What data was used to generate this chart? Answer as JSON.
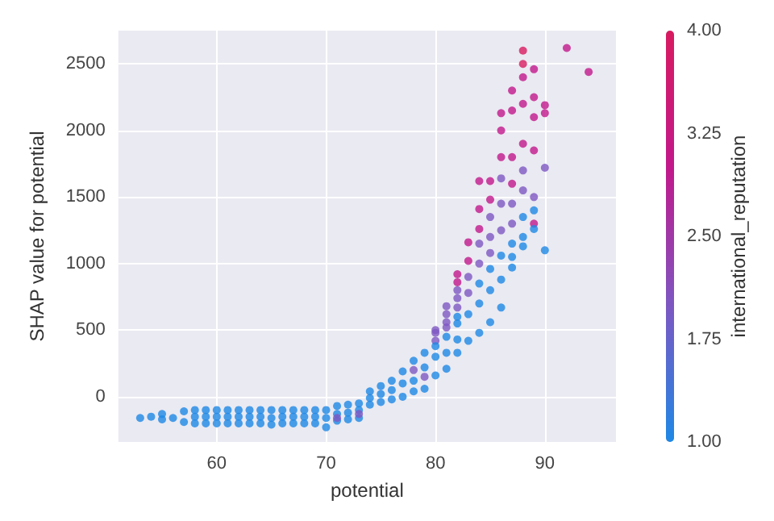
{
  "chart_data": {
    "type": "scatter",
    "xlabel": "potential",
    "ylabel": "SHAP value for potential",
    "clabel": "international_reputation",
    "xlim": [
      51,
      96.5
    ],
    "xticks": [
      60,
      70,
      80,
      90
    ],
    "ylim": [
      -340,
      2750
    ],
    "yticks": [
      0,
      500,
      1000,
      1500,
      2000,
      2500
    ],
    "grid": true,
    "marker": "circle",
    "clim": [
      1,
      4
    ],
    "cticks": [
      {
        "value": 1,
        "label": "1.00"
      },
      {
        "value": 1.75,
        "label": "1.75"
      },
      {
        "value": 2.5,
        "label": "2.50"
      },
      {
        "value": 3.25,
        "label": "3.25"
      },
      {
        "value": 4,
        "label": "4.00"
      }
    ],
    "x": [
      53,
      54,
      55,
      55,
      56,
      57,
      57,
      58,
      58,
      58,
      59,
      59,
      59,
      60,
      60,
      60,
      61,
      61,
      61,
      62,
      62,
      62,
      63,
      63,
      63,
      64,
      64,
      64,
      65,
      65,
      65,
      66,
      66,
      66,
      67,
      67,
      67,
      68,
      68,
      68,
      69,
      69,
      69,
      70,
      70,
      70,
      71,
      71,
      71,
      71,
      72,
      72,
      72,
      73,
      73,
      73,
      73,
      74,
      74,
      74,
      75,
      75,
      75,
      76,
      76,
      76,
      77,
      77,
      77,
      78,
      78,
      78,
      78,
      79,
      79,
      79,
      79,
      80,
      80,
      80,
      80,
      80,
      80,
      81,
      81,
      81,
      81,
      81,
      81,
      81,
      82,
      82,
      82,
      82,
      82,
      82,
      82,
      82,
      82,
      83,
      83,
      83,
      83,
      83,
      83,
      84,
      84,
      84,
      84,
      84,
      84,
      84,
      84,
      85,
      85,
      85,
      85,
      85,
      85,
      85,
      85,
      86,
      86,
      86,
      86,
      86,
      86,
      86,
      86,
      86,
      87,
      87,
      87,
      87,
      87,
      87,
      87,
      87,
      87,
      88,
      88,
      88,
      88,
      88,
      88,
      88,
      88,
      88,
      88,
      89,
      89,
      89,
      89,
      89,
      89,
      89,
      89,
      90,
      90,
      90,
      90,
      92,
      94
    ],
    "values": [
      -160,
      -150,
      -130,
      -170,
      -160,
      -110,
      -190,
      -100,
      -150,
      -200,
      -100,
      -150,
      -200,
      -100,
      -150,
      -200,
      -100,
      -150,
      -200,
      -100,
      -150,
      -200,
      -100,
      -150,
      -200,
      -100,
      -150,
      -200,
      -100,
      -160,
      -210,
      -100,
      -150,
      -200,
      -100,
      -150,
      -200,
      -100,
      -150,
      -200,
      -100,
      -150,
      -200,
      -100,
      -160,
      -230,
      -70,
      -130,
      -180,
      -160,
      -60,
      -120,
      -170,
      -50,
      -100,
      -160,
      -130,
      40,
      -10,
      -60,
      80,
      20,
      -40,
      120,
      50,
      -20,
      190,
      100,
      0,
      270,
      200,
      120,
      40,
      330,
      220,
      150,
      60,
      500,
      420,
      300,
      160,
      480,
      380,
      680,
      560,
      450,
      330,
      210,
      620,
      520,
      920,
      800,
      670,
      550,
      430,
      330,
      860,
      740,
      600,
      1160,
      1020,
      900,
      780,
      620,
      420,
      1620,
      1410,
      1260,
      1150,
      1000,
      850,
      700,
      480,
      1620,
      1480,
      1350,
      1200,
      1080,
      960,
      800,
      560,
      2130,
      2000,
      1800,
      1640,
      1450,
      1250,
      1060,
      880,
      670,
      2300,
      2150,
      1800,
      1600,
      1450,
      1300,
      1150,
      1050,
      970,
      2600,
      2500,
      2400,
      2200,
      1900,
      1700,
      1550,
      1350,
      1200,
      1130,
      2460,
      2250,
      2100,
      1850,
      1500,
      1300,
      1400,
      1260,
      2190,
      2130,
      1720,
      1100,
      2620,
      2440
    ],
    "cvalues": [
      1,
      1,
      1,
      1,
      1,
      1,
      1,
      1,
      1,
      1,
      1,
      1,
      1,
      1,
      1,
      1,
      1,
      1,
      1,
      1,
      1,
      1,
      1,
      1,
      1,
      1,
      1,
      1,
      1,
      1,
      1,
      1,
      1,
      1,
      1,
      1,
      1,
      1,
      1,
      1,
      1,
      1,
      1,
      1,
      1,
      1,
      1,
      1,
      1,
      2,
      1,
      1,
      1,
      1,
      1,
      1,
      2,
      1,
      1,
      1,
      1,
      1,
      1,
      1,
      1,
      1,
      1,
      1,
      1,
      1,
      2,
      1,
      1,
      1,
      1,
      2,
      1,
      2,
      2,
      1,
      1,
      2,
      1,
      2,
      2,
      1,
      1,
      1,
      2,
      2,
      3,
      2,
      2,
      1,
      1,
      1,
      3,
      2,
      1,
      3,
      3,
      2,
      2,
      1,
      1,
      3,
      3,
      3,
      2,
      2,
      1,
      1,
      1,
      3,
      3,
      2,
      2,
      2,
      1,
      1,
      1,
      3,
      3,
      3,
      2,
      2,
      2,
      1,
      1,
      1,
      3,
      3,
      3,
      3,
      2,
      2,
      1,
      1,
      1,
      4,
      4,
      3,
      3,
      3,
      2,
      2,
      1,
      1,
      1,
      3,
      3,
      3,
      3,
      2,
      3,
      1,
      1,
      3,
      3,
      2,
      1,
      3,
      3
    ]
  }
}
